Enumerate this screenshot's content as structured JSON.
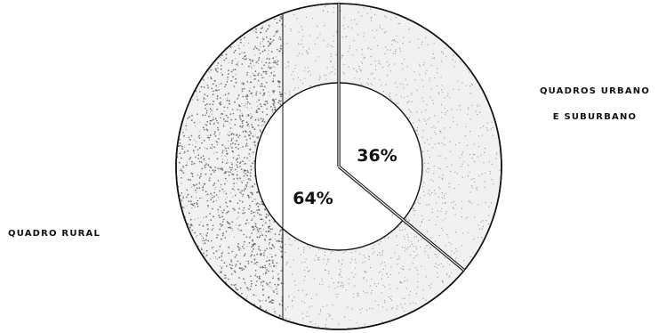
{
  "chart_data": {
    "type": "pie",
    "style": "donut",
    "categories": [
      "QUADROS URBANO E SUBURBANO",
      "QUADRO RURAL"
    ],
    "values": [
      36,
      64
    ],
    "value_labels": [
      "36%",
      "64%"
    ],
    "category_label_lines": [
      [
        "QUADROS URBANO",
        "E SUBURBANO"
      ],
      [
        "QUADRO RURAL"
      ]
    ],
    "colors": {
      "ink": "#111111",
      "ring_fill": "#f1f1f1",
      "stipple": "#7a7a7a",
      "stipple_dense": "#4a4a4a"
    }
  }
}
